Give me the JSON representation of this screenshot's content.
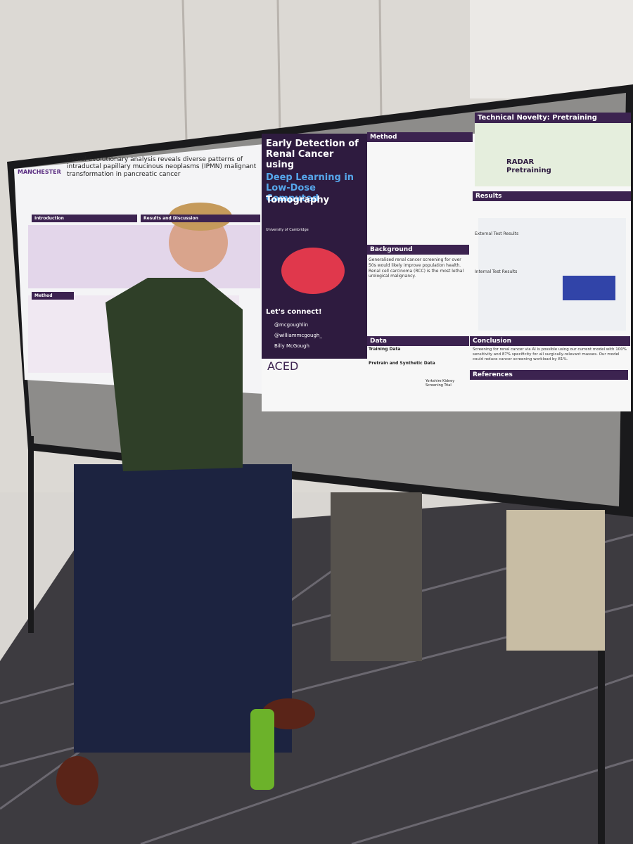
{
  "left_poster": {
    "logo": "MANCHESTER",
    "title": "Clonal evolutionary analysis reveals diverse patterns of intraductal papillary mucinous neoplasms (IPMN) malignant transformation in pancreatic cancer",
    "sections": [
      "Introduction",
      "Method",
      "Results and Discussion"
    ]
  },
  "main_poster": {
    "title": "Early Detection of Renal Cancer using",
    "title_highlight": "Deep Learning in Low-Dose Computed",
    "title_end": "Tomography",
    "institution": "University of Cambridge",
    "connect": "Let's connect!",
    "handles": [
      "@mcgoughlin",
      "@williammcgough_",
      "Billy McGough"
    ],
    "logo": "ACED",
    "sections": {
      "method": "Method",
      "background": "Background",
      "data": "Data",
      "novelty": "Technical Novelty: Pretraining",
      "radar": "RADAR Pretraining",
      "results": "Results",
      "conclusion": "Conclusion",
      "references": "References"
    },
    "data_items": [
      "Training Data",
      "Pretrain and Synthetic Data"
    ],
    "results_items": [
      "External Test Results",
      "Internal Test Results"
    ],
    "trial": "Yorkshire Kidney Screening Trial",
    "background_text": "Generalised renal cancer screening for over 50s would likely improve population health. Renal cell carcinoma (RCC) is the most lethal urological malignancy.",
    "conclusion_text": "Screening for renal cancer via AI is possible using our current model with 100% sensitivity and 87% specificity for all surgically-relevant masses. Our model could reduce cancer screening workload by 81%."
  }
}
